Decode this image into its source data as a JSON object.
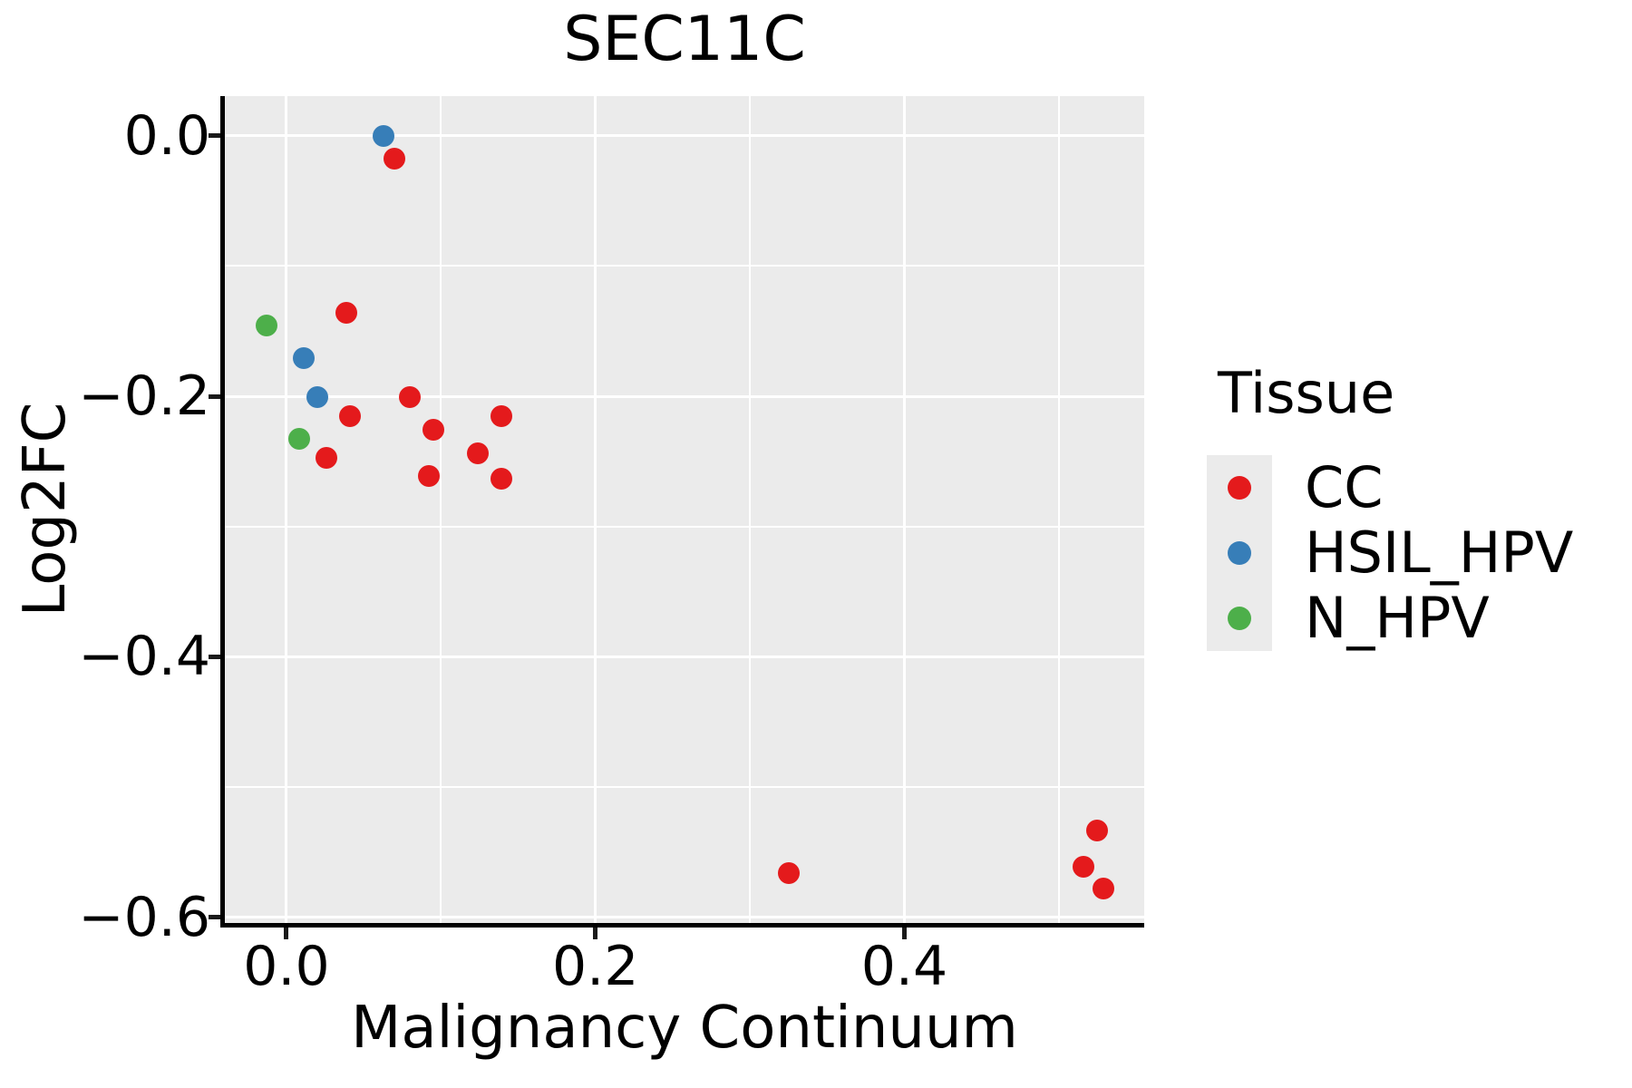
{
  "chart_data": {
    "type": "scatter",
    "title": "SEC11C",
    "xlabel": "Malignancy Continuum",
    "ylabel": "Log2FC",
    "xlim": [
      -0.0399,
      0.5553
    ],
    "ylim": [
      -0.6042,
      0.0303
    ],
    "grid": true,
    "panel_background": "#ebebeb",
    "gridline_color": "#ffffff",
    "x_major_ticks": {
      "values": [
        0.0,
        0.2,
        0.4
      ],
      "labels": [
        "0.0",
        "0.2",
        "0.4"
      ]
    },
    "y_major_ticks": {
      "values": [
        0.0,
        -0.2,
        -0.4,
        -0.6
      ],
      "labels": [
        "0.0",
        "−0.2",
        "−0.4",
        "−0.6"
      ]
    },
    "x_minor_ticks": [
      0.1,
      0.3,
      0.5
    ],
    "y_minor_ticks": [
      -0.1,
      -0.3,
      -0.5
    ],
    "legend": {
      "title": "Tissue",
      "position": "right",
      "key_background": "#ebebeb"
    },
    "series": [
      {
        "name": "CC",
        "color": "#e41a1c",
        "points": [
          [
            0.07,
            -0.018
          ],
          [
            0.039,
            -0.136
          ],
          [
            0.041,
            -0.215
          ],
          [
            0.08,
            -0.201
          ],
          [
            0.095,
            -0.226
          ],
          [
            0.026,
            -0.247
          ],
          [
            0.092,
            -0.261
          ],
          [
            0.139,
            -0.215
          ],
          [
            0.124,
            -0.244
          ],
          [
            0.139,
            -0.263
          ],
          [
            0.325,
            -0.566
          ],
          [
            0.525,
            -0.533
          ],
          [
            0.516,
            -0.561
          ],
          [
            0.529,
            -0.578
          ]
        ]
      },
      {
        "name": "HSIL_HPV",
        "color": "#377eb8",
        "points": [
          [
            0.063,
            0.0
          ],
          [
            0.011,
            -0.171
          ],
          [
            0.02,
            -0.201
          ]
        ]
      },
      {
        "name": "N_HPV",
        "color": "#4daf4a",
        "points": [
          [
            -0.013,
            -0.146
          ],
          [
            0.008,
            -0.233
          ]
        ]
      }
    ]
  }
}
